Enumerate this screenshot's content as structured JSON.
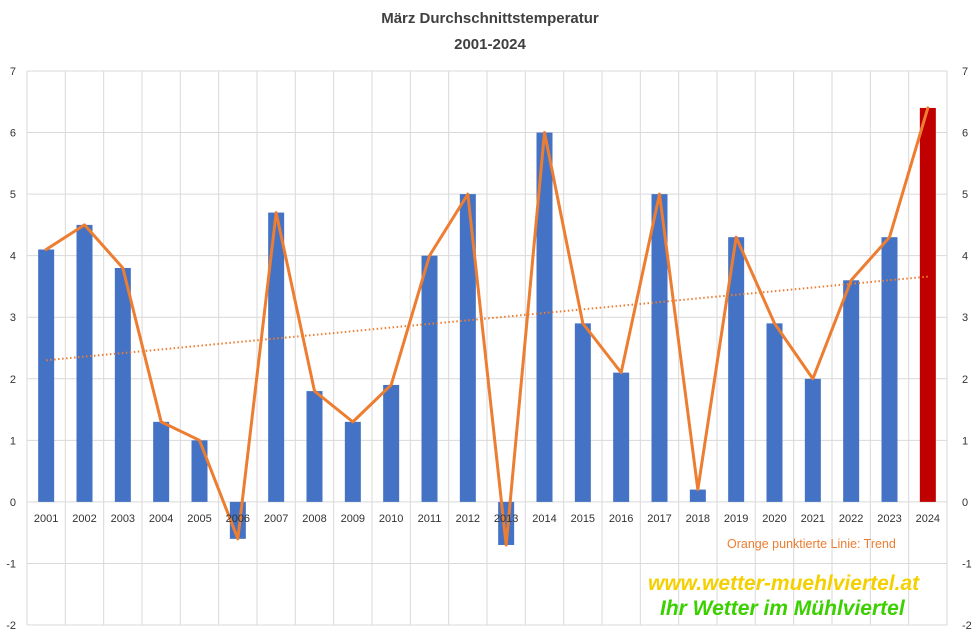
{
  "chart_data": {
    "type": "bar",
    "title": "März Durchschnittstemperatur",
    "subtitle": "2001-2024",
    "categories": [
      "2001",
      "2002",
      "2003",
      "2004",
      "2005",
      "2006",
      "2007",
      "2008",
      "2009",
      "2010",
      "2011",
      "2012",
      "2013",
      "2014",
      "2015",
      "2016",
      "2017",
      "2018",
      "2019",
      "2020",
      "2021",
      "2022",
      "2023",
      "2024"
    ],
    "series": [
      {
        "type": "bar",
        "values": [
          4.1,
          4.5,
          3.8,
          1.3,
          1.0,
          -0.6,
          4.7,
          1.8,
          1.3,
          1.9,
          4.0,
          5.0,
          -0.7,
          6.0,
          2.9,
          2.1,
          5.0,
          0.2,
          4.3,
          2.9,
          2.0,
          3.6,
          4.3,
          6.4
        ],
        "color": "#4472C4",
        "highlight_last_color": "#C00000"
      },
      {
        "type": "line",
        "values": [
          4.1,
          4.5,
          3.8,
          1.3,
          1.0,
          -0.6,
          4.7,
          1.8,
          1.3,
          1.9,
          4.0,
          5.0,
          -0.7,
          6.0,
          2.9,
          2.1,
          5.0,
          0.2,
          4.3,
          2.9,
          2.0,
          3.6,
          4.3,
          6.4
        ],
        "color": "#ED7D31"
      },
      {
        "type": "trend",
        "name": "Trend",
        "start": 2.3,
        "end": 3.66,
        "color": "#ED7D31",
        "style": "dotted"
      }
    ],
    "ylim": [
      -2,
      7
    ],
    "yticks": [
      "-2",
      "-1",
      "0",
      "1",
      "2",
      "3",
      "4",
      "5",
      "6",
      "7"
    ],
    "secondary_yticks": [
      "-2",
      "-1",
      "0",
      "1",
      "2",
      "3",
      "4",
      "5",
      "6",
      "7"
    ],
    "grid": true,
    "annotation": "Orange punktierte Linie: Trend",
    "watermark": {
      "line1": "www.wetter-muehlviertel.at",
      "line2": "Ihr Wetter im Mühlviertel",
      "color1": "#F5D000",
      "color2": "#3BD000"
    }
  }
}
